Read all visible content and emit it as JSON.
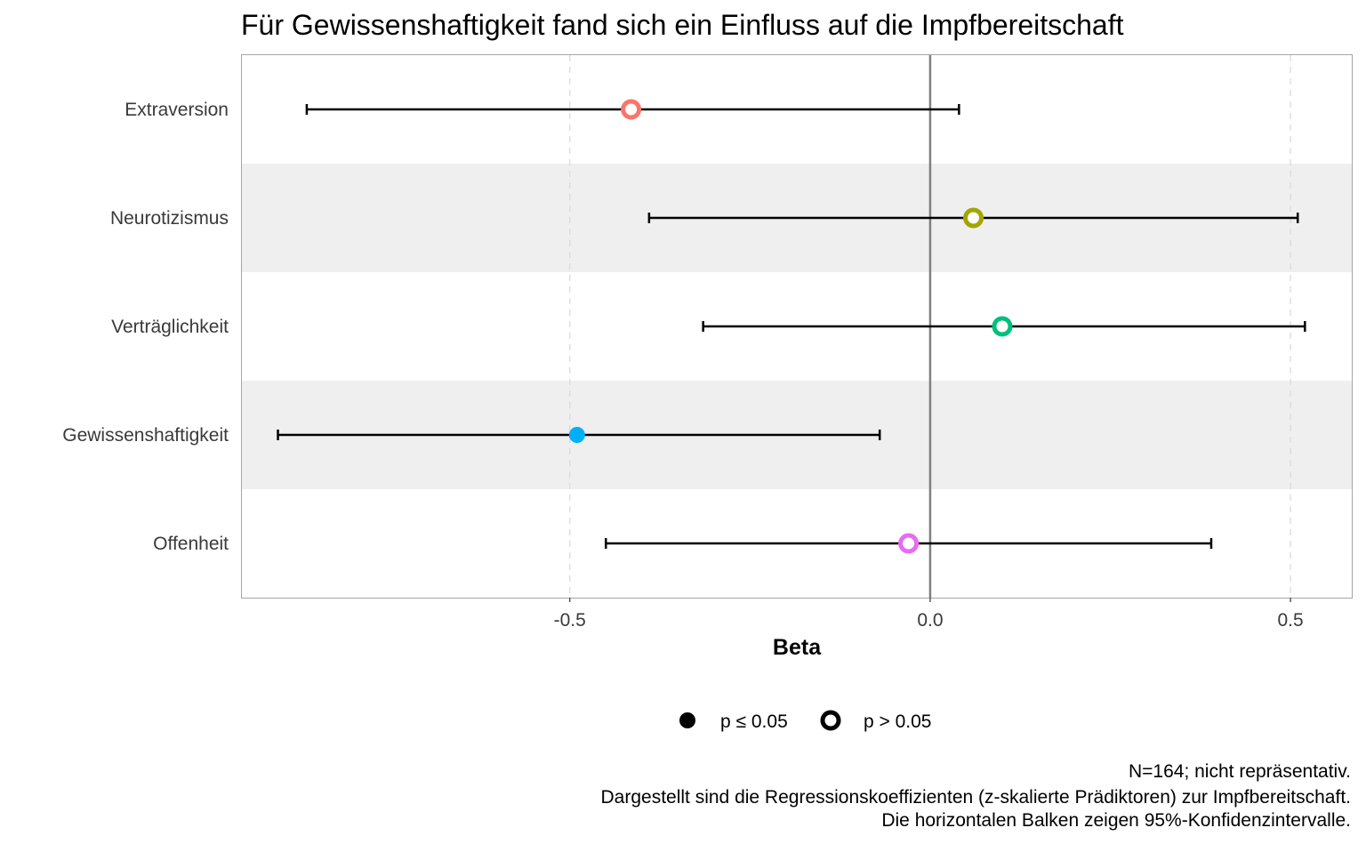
{
  "chart_data": {
    "type": "scatter",
    "title": "Für Gewissenshaftigkeit fand sich ein Einfluss auf die Impfbereitschaft",
    "xlabel": "Beta",
    "ylabel": "",
    "xlim": [
      -0.955,
      0.585
    ],
    "x_ticks": [
      -0.5,
      0.0,
      0.5
    ],
    "x_tick_labels": [
      "-0.5",
      "0.0",
      "0.5"
    ],
    "reference_line": 0.0,
    "grid": "dashed vertical lines at -0.5 and 0.5",
    "alternating_row_bands": true,
    "error_bars": "95%-Konfidenzintervalle",
    "categories": [
      "Extraversion",
      "Neurotizismus",
      "Verträglichkeit",
      "Gewissenshaftigkeit",
      "Offenheit"
    ],
    "series": [
      {
        "values": [
          -0.415,
          0.06,
          0.1,
          -0.49,
          -0.03
        ],
        "ci_low": [
          -0.865,
          -0.39,
          -0.315,
          -0.905,
          -0.45
        ],
        "ci_high": [
          0.04,
          0.51,
          0.52,
          -0.07,
          0.39
        ],
        "significant": [
          false,
          false,
          false,
          true,
          false
        ],
        "colors": [
          "#F8766D",
          "#A3A500",
          "#00BF7D",
          "#00B0F6",
          "#E76BF3"
        ]
      }
    ],
    "legend": {
      "placement": "bottom",
      "items": [
        {
          "label": "p ≤ 0.05",
          "marker": "filled-circle"
        },
        {
          "label": "p > 0.05",
          "marker": "hollow-circle"
        }
      ]
    },
    "caption": [
      "N=164; nicht repräsentativ.",
      "Dargestellt sind die Regressionskoeffizienten (z-skalierte Prädiktoren) zur Impfbereitschaft.",
      "Die horizontalen Balken zeigen 95%-Konfidenzintervalle."
    ]
  },
  "colors": {
    "band": "#EFEFEF",
    "panel_border": "#A6A6A6",
    "grid": "#D9D9D9",
    "zero_line": "#808080",
    "error_bar": "#000000"
  }
}
